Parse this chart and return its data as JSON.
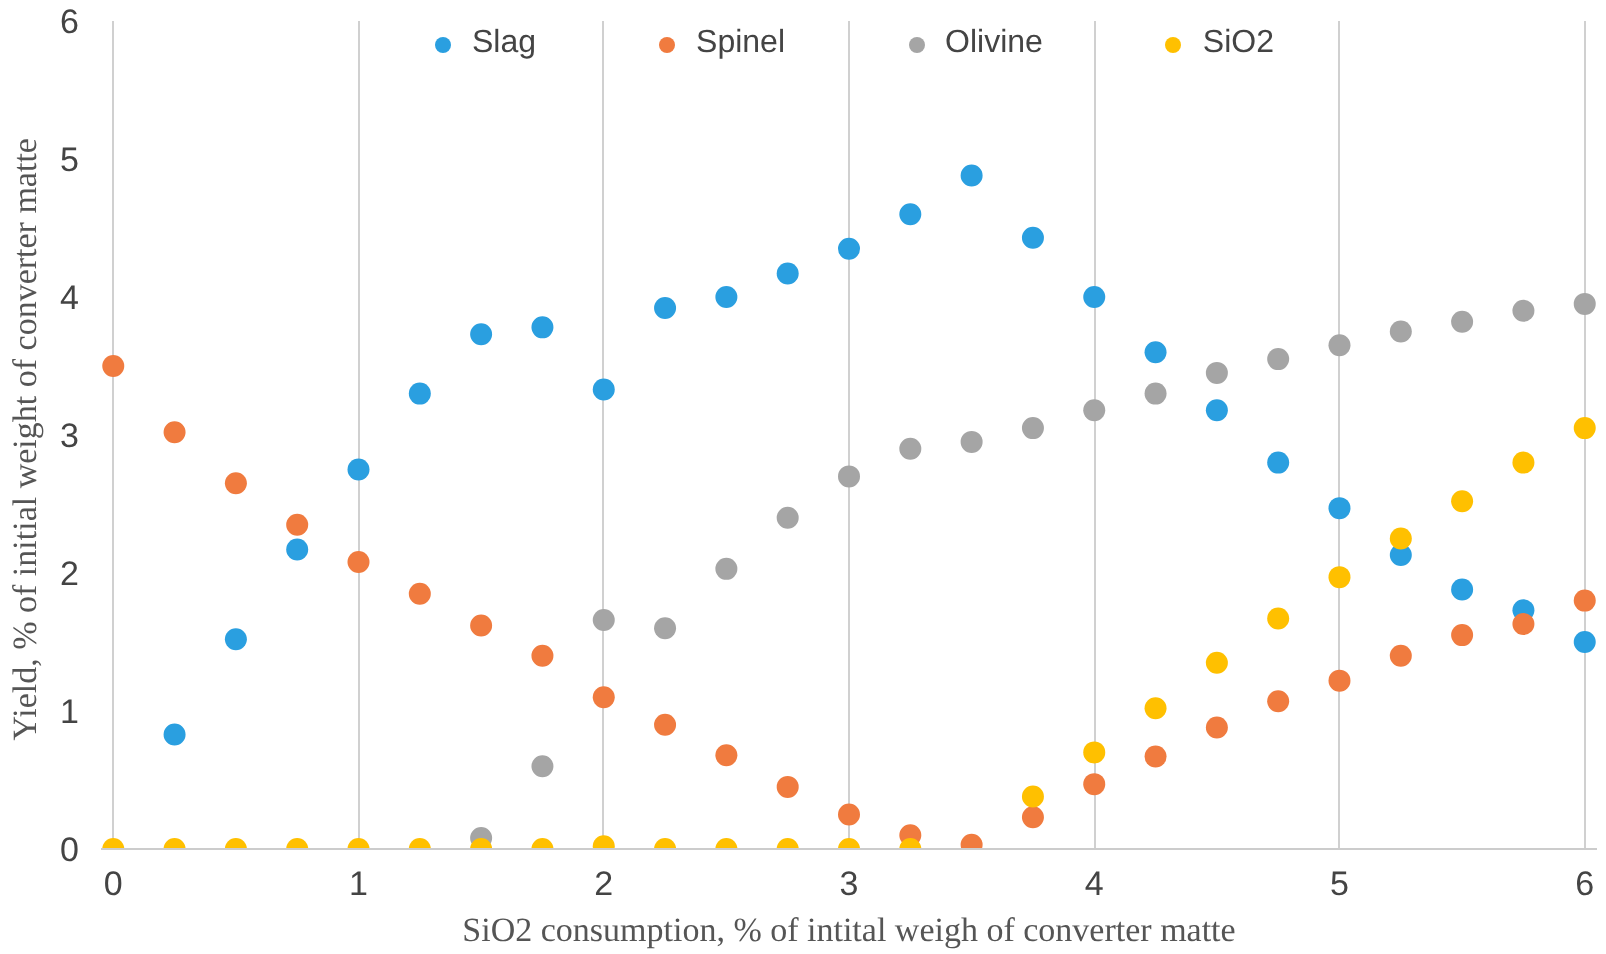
{
  "chart_data": {
    "type": "scatter",
    "xlabel": "SiO2 consumption, % of intital weigh of converter matte",
    "ylabel": "Yield, % of initial weight of converter  matte",
    "x": [
      0,
      0.25,
      0.5,
      0.75,
      1,
      1.25,
      1.5,
      1.75,
      2,
      2.25,
      2.5,
      2.75,
      3,
      3.25,
      3.5,
      3.75,
      4,
      4.25,
      4.5,
      4.75,
      5,
      5.25,
      5.5,
      5.75,
      6
    ],
    "series": [
      {
        "name": "Slag",
        "color": "#2a9fe0",
        "values": [
          null,
          0.83,
          1.52,
          2.17,
          2.75,
          3.3,
          3.73,
          3.78,
          3.33,
          3.92,
          4.0,
          4.17,
          4.35,
          4.6,
          4.88,
          4.43,
          4.0,
          3.6,
          3.18,
          2.8,
          2.47,
          2.13,
          1.88,
          1.73,
          1.5
        ]
      },
      {
        "name": "Spinel",
        "color": "#f07b3f",
        "values": [
          3.5,
          3.02,
          2.65,
          2.35,
          2.08,
          1.85,
          1.62,
          1.4,
          1.1,
          0.9,
          0.68,
          0.45,
          0.25,
          0.1,
          0.03,
          0.23,
          0.47,
          0.67,
          0.88,
          1.07,
          1.22,
          1.4,
          1.55,
          1.63,
          1.8
        ]
      },
      {
        "name": "Olivine",
        "color": "#a5a5a5",
        "values": [
          null,
          null,
          null,
          null,
          null,
          null,
          0.08,
          0.6,
          1.66,
          1.6,
          2.03,
          2.4,
          2.7,
          2.9,
          2.95,
          3.05,
          3.18,
          3.3,
          3.45,
          3.55,
          3.65,
          3.75,
          3.82,
          3.9,
          3.95
        ]
      },
      {
        "name": "SiO2",
        "color": "#ffc000",
        "values": [
          0,
          0,
          0,
          0,
          0,
          0,
          0,
          0,
          0.02,
          0,
          0,
          0,
          0,
          0,
          null,
          0.38,
          0.7,
          1.02,
          1.35,
          1.67,
          1.97,
          2.25,
          2.52,
          2.8,
          3.05
        ]
      }
    ],
    "xlim": [
      -0.05,
      6.05
    ],
    "xticks": [
      0,
      1,
      2,
      3,
      4,
      5,
      6
    ],
    "ylim": [
      0,
      6
    ],
    "yticks": [
      0,
      1,
      2,
      3,
      4,
      5,
      6
    ],
    "grid": "x",
    "legend": "top",
    "marker": "circle"
  }
}
